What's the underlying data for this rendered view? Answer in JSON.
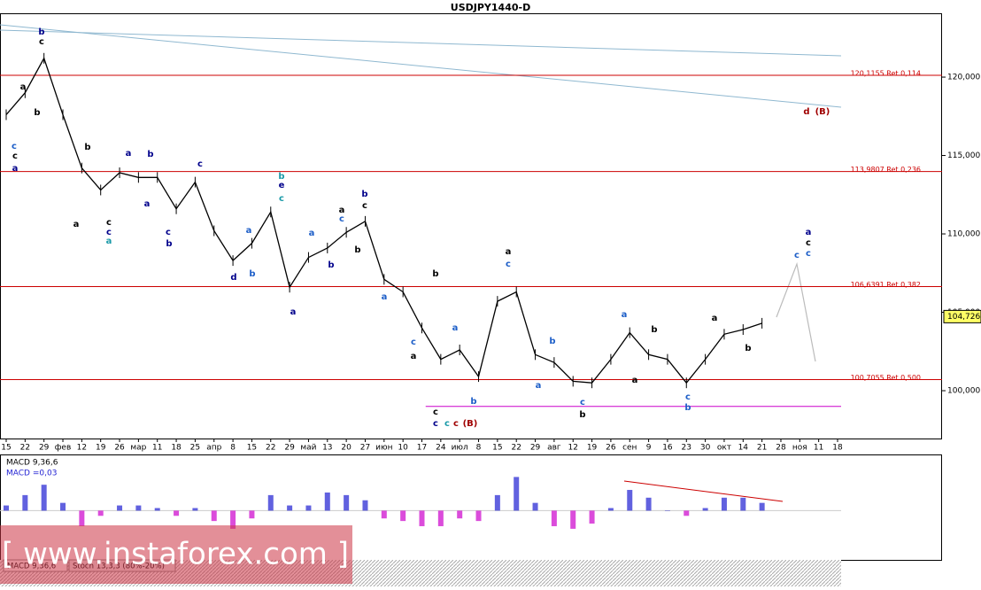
{
  "chart_data": {
    "type": "line",
    "title": "USDJPY1440-D",
    "categories": [
      "15",
      "22",
      "29",
      "фев",
      "12",
      "19",
      "26",
      "мар",
      "11",
      "18",
      "25",
      "апр",
      "8",
      "15",
      "22",
      "29",
      "май",
      "13",
      "20",
      "27",
      "июн",
      "10",
      "17",
      "24",
      "июл",
      "8",
      "15",
      "22",
      "29",
      "авг",
      "12",
      "19",
      "26",
      "сен",
      "9",
      "16",
      "23",
      "30",
      "окт",
      "14",
      "21",
      "28",
      "ноя",
      "11",
      "18"
    ],
    "series": [
      {
        "color": "#000000",
        "values": [
          117.6,
          119.0,
          121.2,
          117.6,
          114.2,
          112.8,
          113.9,
          113.6,
          113.6,
          111.6,
          113.3,
          110.2,
          108.3,
          109.4,
          111.4,
          106.6,
          108.5,
          109.1,
          110.1,
          110.8,
          107.1,
          106.3,
          104.0,
          102.0,
          102.6,
          100.9,
          105.7,
          106.3,
          102.3,
          101.8,
          100.6,
          100.5,
          102.0,
          103.7,
          102.3,
          102.0,
          100.5,
          102.0,
          103.6,
          103.9,
          104.3,
          null,
          null,
          null,
          null
        ]
      }
    ],
    "ylim": [
      96.95,
      124.07
    ],
    "yticks": [
      {
        "value": 100,
        "label": "100,000"
      },
      {
        "value": 105,
        "label": "105,000"
      },
      {
        "value": 110,
        "label": "110,000"
      },
      {
        "value": 115,
        "label": "115,000"
      },
      {
        "value": 120,
        "label": "120,000"
      }
    ],
    "current_price": {
      "value": 104.726,
      "label": "104,726"
    },
    "levels": [
      {
        "value": 120.1155,
        "label": "120,1155 Ret 0,114"
      },
      {
        "value": 113.9807,
        "label": "113,9807 Ret 0,236"
      },
      {
        "value": 106.6391,
        "label": "106,6391 Ret 0,382"
      },
      {
        "value": 100.7055,
        "label": "100,7055 Ret 0,500"
      }
    ],
    "level_color": "#cc0000",
    "support": 99.0,
    "support_color": "#cc00cc",
    "wave_labels": [
      {
        "text": "b",
        "color": "#00008b"
      },
      {
        "text": "c",
        "color": "#000000"
      },
      {
        "text": "a",
        "color": "#000000"
      },
      {
        "text": "b",
        "color": "#000000"
      },
      {
        "text": "c",
        "color": "#1e5fc8"
      },
      {
        "text": "c",
        "color": "#000000"
      },
      {
        "text": "a",
        "color": "#00008b"
      },
      {
        "text": "b",
        "color": "#000000"
      },
      {
        "text": "a",
        "color": "#00008b"
      },
      {
        "text": "b",
        "color": "#00008b"
      },
      {
        "text": "c",
        "color": "#00008b"
      },
      {
        "text": "a",
        "color": "#000000"
      },
      {
        "text": "c",
        "color": "#000000"
      },
      {
        "text": "c",
        "color": "#00008b"
      },
      {
        "text": "a",
        "color": "#1a9aa8"
      },
      {
        "text": "a",
        "color": "#00008b"
      },
      {
        "text": "c",
        "color": "#00008b"
      },
      {
        "text": "b",
        "color": "#00008b"
      },
      {
        "text": "b",
        "color": "#1a9aa8"
      },
      {
        "text": "e",
        "color": "#00008b"
      },
      {
        "text": "c",
        "color": "#1a9aa8"
      },
      {
        "text": "a",
        "color": "#1e5fc8"
      },
      {
        "text": "d",
        "color": "#00008b"
      },
      {
        "text": "b",
        "color": "#1e5fc8"
      },
      {
        "text": "a",
        "color": "#00008b"
      },
      {
        "text": "a",
        "color": "#1e5fc8"
      },
      {
        "text": "b",
        "color": "#00008b"
      },
      {
        "text": "a",
        "color": "#000000"
      },
      {
        "text": "c",
        "color": "#1e5fc8"
      },
      {
        "text": "b",
        "color": "#00008b"
      },
      {
        "text": "c",
        "color": "#000000"
      },
      {
        "text": "b",
        "color": "#000000"
      },
      {
        "text": "a",
        "color": "#1e5fc8"
      },
      {
        "text": "b",
        "color": "#000000"
      },
      {
        "text": "c",
        "color": "#1e5fc8"
      },
      {
        "text": "a",
        "color": "#000000"
      },
      {
        "text": "a",
        "color": "#1e5fc8"
      },
      {
        "text": "c",
        "color": "#000000"
      },
      {
        "text": "c",
        "color": "#00008b"
      },
      {
        "text": "c",
        "color": "#1a9aa8"
      },
      {
        "text": "c",
        "color": "#a00000"
      },
      {
        "text": "(B)",
        "color": "#a00000"
      },
      {
        "text": "b",
        "color": "#1e5fc8"
      },
      {
        "text": "a",
        "color": "#000000"
      },
      {
        "text": "c",
        "color": "#1e5fc8"
      },
      {
        "text": "a",
        "color": "#1e5fc8"
      },
      {
        "text": "b",
        "color": "#1e5fc8"
      },
      {
        "text": "c",
        "color": "#1e5fc8"
      },
      {
        "text": "b",
        "color": "#000000"
      },
      {
        "text": "a",
        "color": "#1e5fc8"
      },
      {
        "text": "a",
        "color": "#000000"
      },
      {
        "text": "b",
        "color": "#000000"
      },
      {
        "text": "c",
        "color": "#1e5fc8"
      },
      {
        "text": "b",
        "color": "#1e5fc8"
      },
      {
        "text": "a",
        "color": "#000000"
      },
      {
        "text": "b",
        "color": "#000000"
      },
      {
        "text": "c",
        "color": "#1e5fc8"
      },
      {
        "text": "c",
        "color": "#1e5fc8"
      },
      {
        "text": "a",
        "color": "#00008b"
      },
      {
        "text": "c",
        "color": "#000000"
      },
      {
        "text": "d",
        "color": "#a00000"
      },
      {
        "text": "(B)",
        "color": "#a00000"
      }
    ],
    "macd": {
      "title": "MACD 9,36,6",
      "value_label": "MACD =0,03",
      "ylim": [
        -1.9,
        2.1
      ],
      "positive_color": "#1e1ed2",
      "negative_color": "#cc00cc",
      "values": [
        0.2,
        0.6,
        1.0,
        0.3,
        -0.6,
        -0.2,
        0.2,
        0.2,
        0.1,
        -0.2,
        0.1,
        -0.4,
        -0.7,
        -0.3,
        0.6,
        0.2,
        0.2,
        0.7,
        0.6,
        0.4,
        -0.3,
        -0.4,
        -0.6,
        -0.6,
        -0.3,
        -0.4,
        0.6,
        1.3,
        0.3,
        -0.6,
        -0.7,
        -0.5,
        0.1,
        0.8,
        0.5,
        0.0,
        -0.2,
        0.1,
        0.5,
        0.5,
        0.3,
        null,
        null,
        null,
        null
      ]
    },
    "tabs": [
      "MACD 9,36,6",
      "Stoch 13,3,3 (80%-20%)"
    ],
    "watermark": "[ www.instaforex.com ]"
  }
}
